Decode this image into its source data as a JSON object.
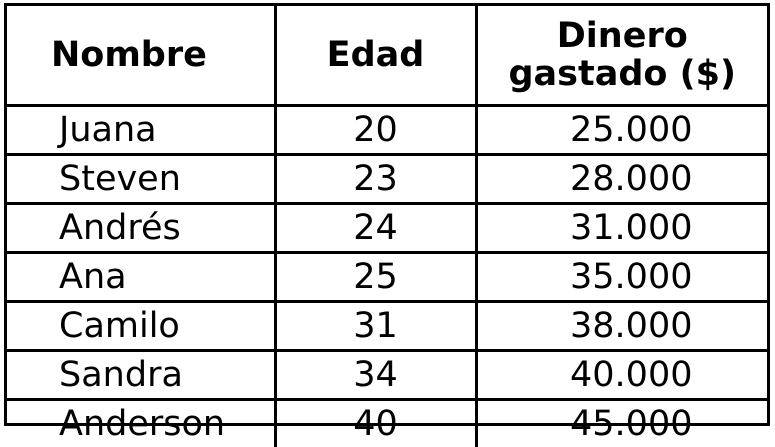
{
  "table": {
    "headers": {
      "name": "Nombre",
      "age": "Edad",
      "money_line1": "Dinero",
      "money_line2": "gastado ($)"
    },
    "rows": [
      {
        "name": "Juana",
        "age": "20",
        "money": "25.000"
      },
      {
        "name": "Steven",
        "age": "23",
        "money": "28.000"
      },
      {
        "name": "Andrés",
        "age": "24",
        "money": "31.000"
      },
      {
        "name": "Ana",
        "age": "25",
        "money": "35.000"
      },
      {
        "name": "Camilo",
        "age": "31",
        "money": "38.000"
      },
      {
        "name": "Sandra",
        "age": "34",
        "money": "40.000"
      },
      {
        "name": "Anderson",
        "age": "40",
        "money": "45.000"
      }
    ]
  }
}
